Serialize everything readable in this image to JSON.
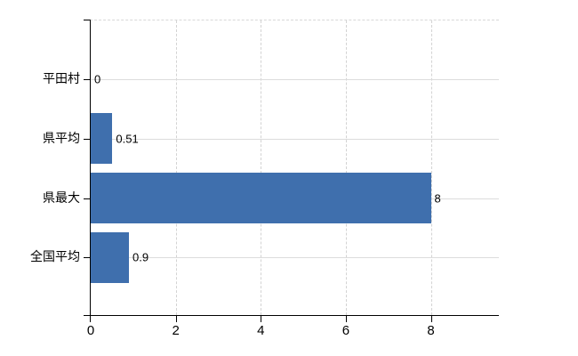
{
  "chart_data": {
    "type": "bar",
    "orientation": "horizontal",
    "title": "",
    "xlabel": "",
    "ylabel": "",
    "categories": [
      "平田村",
      "県平均",
      "県最大",
      "全国平均"
    ],
    "values": [
      0,
      0.51,
      8,
      0.9
    ],
    "value_labels": [
      "0",
      "0.51",
      "8",
      "0.9"
    ],
    "x_ticks": [
      0,
      2,
      4,
      6,
      8
    ],
    "x_tick_labels": [
      "0",
      "2",
      "4",
      "6",
      "8"
    ],
    "xlim": [
      0,
      9.6
    ],
    "legend": "none",
    "grid": {
      "vertical_lines": "dashed at each x tick",
      "horizontal_lines": "solid light line at each category center",
      "plot_top_border": "dashed"
    }
  },
  "colors": {
    "bar": "#3f6fad",
    "axis": "#000000",
    "grid_vertical": "#d3d3d3",
    "grid_horizontal": "#dcdcdc",
    "background": "#ffffff",
    "text": "#000000"
  }
}
